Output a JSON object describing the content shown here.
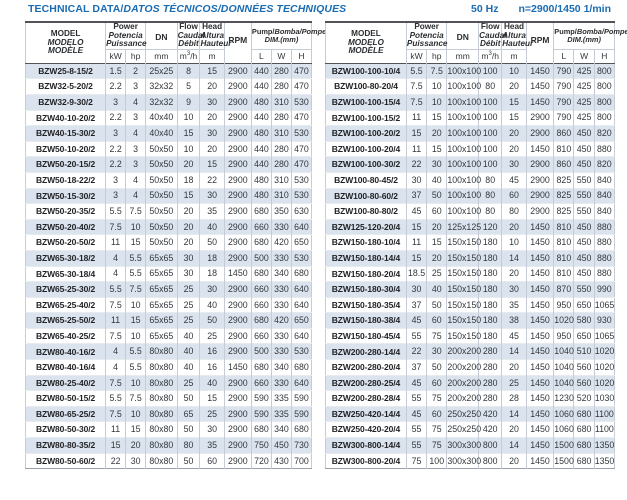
{
  "page": {
    "title_en": "TECHNICAL DATA/",
    "title_intl": "DATOS TÉCNICOS/DONNÉES TECHNIQUES",
    "frequency": "50 Hz",
    "speed": "n=2900/1450 1/min",
    "accent_color": "#1a6cb3",
    "stripe_color": "#dbe3ee"
  },
  "header": {
    "model_lines": [
      "MODEL",
      "MODELO",
      "MODÈLE"
    ],
    "power_lines": [
      "Power",
      "Potencia",
      "Puissance"
    ],
    "power_units": [
      "kW",
      "hp"
    ],
    "dn_label": "DN",
    "dn_unit": "mm",
    "flow_lines": [
      "Flow",
      "Caudal",
      "Débit"
    ],
    "flow_unit_base": "m",
    "flow_unit_sup": "3",
    "flow_unit_tail": "/h",
    "head_lines": [
      "Head",
      "Altura",
      "Hauteur"
    ],
    "head_unit": "m",
    "rpm_label": "RPM",
    "dim_label_en": "Pump/",
    "dim_label_intl": "Bomba/Pompe",
    "dim_sub": "DIM.(mm)",
    "dim_units": [
      "L",
      "W",
      "H"
    ]
  },
  "tables": {
    "left": {
      "rows": [
        [
          "BZW25-8-15/2",
          "1.5",
          "2",
          "25x25",
          "8",
          "15",
          "2900",
          "440",
          "280",
          "470"
        ],
        [
          "BZW32-5-20/2",
          "2.2",
          "3",
          "32x32",
          "5",
          "20",
          "2900",
          "440",
          "280",
          "470"
        ],
        [
          "BZW32-9-30/2",
          "3",
          "4",
          "32x32",
          "9",
          "30",
          "2900",
          "480",
          "310",
          "530"
        ],
        [
          "BZW40-10-20/2",
          "2.2",
          "3",
          "40x40",
          "10",
          "20",
          "2900",
          "440",
          "280",
          "470"
        ],
        [
          "BZW40-15-30/2",
          "3",
          "4",
          "40x40",
          "15",
          "30",
          "2900",
          "480",
          "310",
          "530"
        ],
        [
          "BZW50-10-20/2",
          "2.2",
          "3",
          "50x50",
          "10",
          "20",
          "2900",
          "440",
          "280",
          "470"
        ],
        [
          "BZW50-20-15/2",
          "2.2",
          "3",
          "50x50",
          "20",
          "15",
          "2900",
          "440",
          "280",
          "470"
        ],
        [
          "BZW50-18-22/2",
          "3",
          "4",
          "50x50",
          "18",
          "22",
          "2900",
          "480",
          "310",
          "530"
        ],
        [
          "BZW50-15-30/2",
          "3",
          "4",
          "50x50",
          "15",
          "30",
          "2900",
          "480",
          "310",
          "530"
        ],
        [
          "BZW50-20-35/2",
          "5.5",
          "7.5",
          "50x50",
          "20",
          "35",
          "2900",
          "680",
          "350",
          "630"
        ],
        [
          "BZW50-20-40/2",
          "7.5",
          "10",
          "50x50",
          "20",
          "40",
          "2900",
          "660",
          "330",
          "640"
        ],
        [
          "BZW50-20-50/2",
          "11",
          "15",
          "50x50",
          "20",
          "50",
          "2900",
          "680",
          "420",
          "650"
        ],
        [
          "BZW65-30-18/2",
          "4",
          "5.5",
          "65x65",
          "30",
          "18",
          "2900",
          "500",
          "330",
          "530"
        ],
        [
          "BZW65-30-18/4",
          "4",
          "5.5",
          "65x65",
          "30",
          "18",
          "1450",
          "680",
          "340",
          "680"
        ],
        [
          "BZW65-25-30/2",
          "5.5",
          "7.5",
          "65x65",
          "25",
          "30",
          "2900",
          "660",
          "330",
          "640"
        ],
        [
          "BZW65-25-40/2",
          "7.5",
          "10",
          "65x65",
          "25",
          "40",
          "2900",
          "660",
          "330",
          "640"
        ],
        [
          "BZW65-25-50/2",
          "11",
          "15",
          "65x65",
          "25",
          "50",
          "2900",
          "680",
          "420",
          "650"
        ],
        [
          "BZW65-40-25/2",
          "7.5",
          "10",
          "65x65",
          "40",
          "25",
          "2900",
          "660",
          "330",
          "640"
        ],
        [
          "BZW80-40-16/2",
          "4",
          "5.5",
          "80x80",
          "40",
          "16",
          "2900",
          "500",
          "330",
          "530"
        ],
        [
          "BZW80-40-16/4",
          "4",
          "5.5",
          "80x80",
          "40",
          "16",
          "1450",
          "680",
          "340",
          "680"
        ],
        [
          "BZW80-25-40/2",
          "7.5",
          "10",
          "80x80",
          "25",
          "40",
          "2900",
          "660",
          "330",
          "640"
        ],
        [
          "BZW80-50-15/2",
          "5.5",
          "7.5",
          "80x80",
          "50",
          "15",
          "2900",
          "590",
          "335",
          "590"
        ],
        [
          "BZW80-65-25/2",
          "7.5",
          "10",
          "80x80",
          "65",
          "25",
          "2900",
          "590",
          "335",
          "590"
        ],
        [
          "BZW80-50-30/2",
          "11",
          "15",
          "80x80",
          "50",
          "30",
          "2900",
          "680",
          "340",
          "680"
        ],
        [
          "BZW80-80-35/2",
          "15",
          "20",
          "80x80",
          "80",
          "35",
          "2900",
          "750",
          "450",
          "730"
        ],
        [
          "BZW80-50-60/2",
          "22",
          "30",
          "80x80",
          "50",
          "60",
          "2900",
          "720",
          "430",
          "700"
        ]
      ]
    },
    "right": {
      "rows": [
        [
          "BZW100-100-10/4",
          "5.5",
          "7.5",
          "100x100",
          "100",
          "10",
          "1450",
          "790",
          "425",
          "800"
        ],
        [
          "BZW100-80-20/4",
          "7.5",
          "10",
          "100x100",
          "80",
          "20",
          "1450",
          "790",
          "425",
          "800"
        ],
        [
          "BZW100-100-15/4",
          "7.5",
          "10",
          "100x100",
          "100",
          "15",
          "1450",
          "790",
          "425",
          "800"
        ],
        [
          "BZW100-100-15/2",
          "11",
          "15",
          "100x100",
          "100",
          "15",
          "2900",
          "790",
          "425",
          "800"
        ],
        [
          "BZW100-100-20/2",
          "15",
          "20",
          "100x100",
          "100",
          "20",
          "2900",
          "860",
          "450",
          "820"
        ],
        [
          "BZW100-100-20/4",
          "11",
          "15",
          "100x100",
          "100",
          "20",
          "1450",
          "810",
          "450",
          "880"
        ],
        [
          "BZW100-100-30/2",
          "22",
          "30",
          "100x100",
          "100",
          "30",
          "2900",
          "860",
          "450",
          "820"
        ],
        [
          "BZW100-80-45/2",
          "30",
          "40",
          "100x100",
          "80",
          "45",
          "2900",
          "825",
          "550",
          "840"
        ],
        [
          "BZW100-80-60/2",
          "37",
          "50",
          "100x100",
          "80",
          "60",
          "2900",
          "825",
          "550",
          "840"
        ],
        [
          "BZW100-80-80/2",
          "45",
          "60",
          "100x100",
          "80",
          "80",
          "2900",
          "825",
          "550",
          "840"
        ],
        [
          "BZW125-120-20/4",
          "15",
          "20",
          "125x125",
          "120",
          "20",
          "1450",
          "810",
          "450",
          "880"
        ],
        [
          "BZW150-180-10/4",
          "11",
          "15",
          "150x150",
          "180",
          "10",
          "1450",
          "810",
          "450",
          "880"
        ],
        [
          "BZW150-180-14/4",
          "15",
          "20",
          "150x150",
          "180",
          "14",
          "1450",
          "810",
          "450",
          "880"
        ],
        [
          "BZW150-180-20/4",
          "18.5",
          "25",
          "150x150",
          "180",
          "20",
          "1450",
          "810",
          "450",
          "880"
        ],
        [
          "BZW150-180-30/4",
          "30",
          "40",
          "150x150",
          "180",
          "30",
          "1450",
          "870",
          "550",
          "990"
        ],
        [
          "BZW150-180-35/4",
          "37",
          "50",
          "150x150",
          "180",
          "35",
          "1450",
          "950",
          "650",
          "1065"
        ],
        [
          "BZW150-180-38/4",
          "45",
          "60",
          "150x150",
          "180",
          "38",
          "1450",
          "1020",
          "580",
          "930"
        ],
        [
          "BZW150-180-45/4",
          "55",
          "75",
          "150x150",
          "180",
          "45",
          "1450",
          "950",
          "650",
          "1065"
        ],
        [
          "BZW200-280-14/4",
          "22",
          "30",
          "200x200",
          "280",
          "14",
          "1450",
          "1040",
          "510",
          "1020"
        ],
        [
          "BZW200-280-20/4",
          "37",
          "50",
          "200x200",
          "280",
          "20",
          "1450",
          "1040",
          "560",
          "1020"
        ],
        [
          "BZW200-280-25/4",
          "45",
          "60",
          "200x200",
          "280",
          "25",
          "1450",
          "1040",
          "560",
          "1020"
        ],
        [
          "BZW200-280-28/4",
          "55",
          "75",
          "200x200",
          "280",
          "28",
          "1450",
          "1230",
          "520",
          "1030"
        ],
        [
          "BZW250-420-14/4",
          "45",
          "60",
          "250x250",
          "420",
          "14",
          "1450",
          "1060",
          "680",
          "1100"
        ],
        [
          "BZW250-420-20/4",
          "55",
          "75",
          "250x250",
          "420",
          "20",
          "1450",
          "1060",
          "680",
          "1100"
        ],
        [
          "BZW300-800-14/4",
          "55",
          "75",
          "300x300",
          "800",
          "14",
          "1450",
          "1500",
          "680",
          "1350"
        ],
        [
          "BZW300-800-20/4",
          "75",
          "100",
          "300x300",
          "800",
          "20",
          "1450",
          "1500",
          "680",
          "1350"
        ]
      ]
    }
  }
}
